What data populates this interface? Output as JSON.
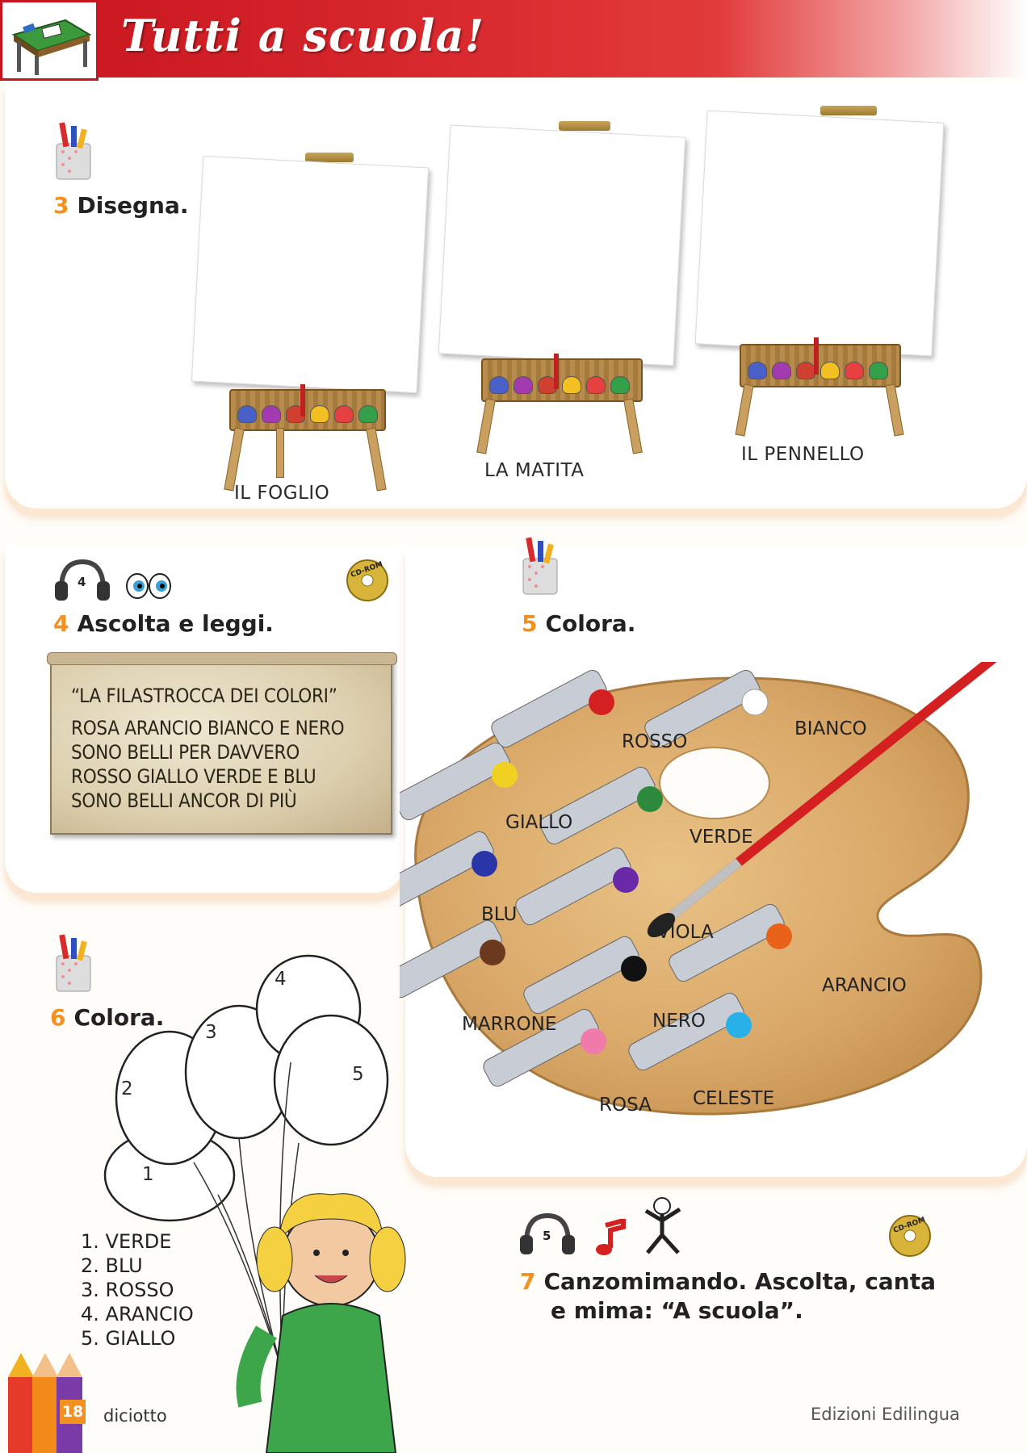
{
  "header": {
    "title": "Tutti a scuola!"
  },
  "ex3": {
    "number": "3",
    "instruction": "Disegna.",
    "easels": [
      "IL FOGLIO",
      "LA MATITA",
      "IL PENNELLO"
    ]
  },
  "ex4": {
    "number": "4",
    "instruction": "Ascolta e leggi.",
    "track": "4",
    "cdrom": "CD-ROM",
    "poem_title": "“LA FILASTROCCA DEI COLORI”",
    "poem_lines": [
      "ROSA ARANCIO BIANCO E NERO",
      "SONO BELLI PER DAVVERO",
      "ROSSO GIALLO VERDE E BLU",
      "SONO BELLI ANCOR DI PIÙ"
    ]
  },
  "ex5": {
    "number": "5",
    "instruction": "Colora.",
    "colors": [
      "ROSSO",
      "BIANCO",
      "GIALLO",
      "VERDE",
      "BLU",
      "VIOLA",
      "ARANCIO",
      "MARRONE",
      "NERO",
      "ROSA",
      "CELESTE"
    ]
  },
  "ex6": {
    "number": "6",
    "instruction": "Colora.",
    "balloon_numbers": [
      "1",
      "2",
      "3",
      "4",
      "5"
    ],
    "list": [
      "1. VERDE",
      "2. BLU",
      "3. ROSSO",
      "4. ARANCIO",
      "5. GIALLO"
    ]
  },
  "ex7": {
    "number": "7",
    "instruction_line1": "Canzomimando. Ascolta, canta",
    "instruction_line2": "e mima: “A scuola”.",
    "track": "5",
    "cdrom": "CD-ROM"
  },
  "footer": {
    "page_number": "18",
    "page_word": "diciotto",
    "publisher": "Edizioni Edilingua"
  }
}
